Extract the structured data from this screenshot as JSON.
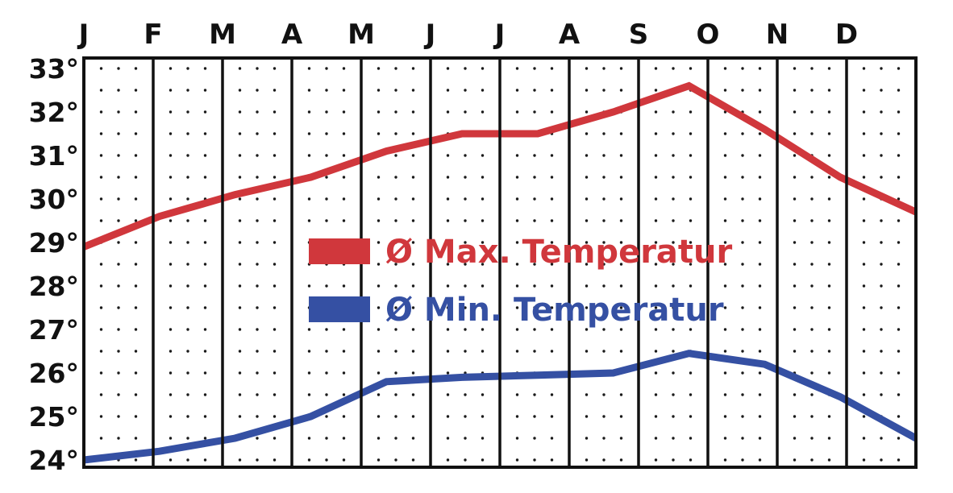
{
  "chart_data": {
    "type": "line",
    "categories": [
      "J",
      "F",
      "M",
      "A",
      "M",
      "J",
      "J",
      "A",
      "S",
      "O",
      "N",
      "D"
    ],
    "y_tick_labels": [
      "24°",
      "25°",
      "26°",
      "27°",
      "28°",
      "29°",
      "30°",
      "31°",
      "32°",
      "33°"
    ],
    "y_ticks": [
      24,
      25,
      26,
      27,
      28,
      29,
      30,
      31,
      32,
      33
    ],
    "ylim": [
      24,
      33
    ],
    "grid": true,
    "legend_position": "center",
    "series": [
      {
        "name": "Ø Max. Temperatur",
        "color": "#d0373c",
        "values": [
          28.9,
          29.6,
          30.1,
          30.5,
          31.1,
          31.5,
          31.5,
          32.0,
          32.6,
          31.6,
          30.5,
          29.7
        ]
      },
      {
        "name": "Ø Min. Temperatur",
        "color": "#3550a3",
        "values": [
          24.0,
          24.2,
          24.5,
          25.0,
          25.8,
          25.9,
          25.95,
          26.0,
          26.45,
          26.2,
          25.45,
          24.5
        ]
      }
    ]
  }
}
